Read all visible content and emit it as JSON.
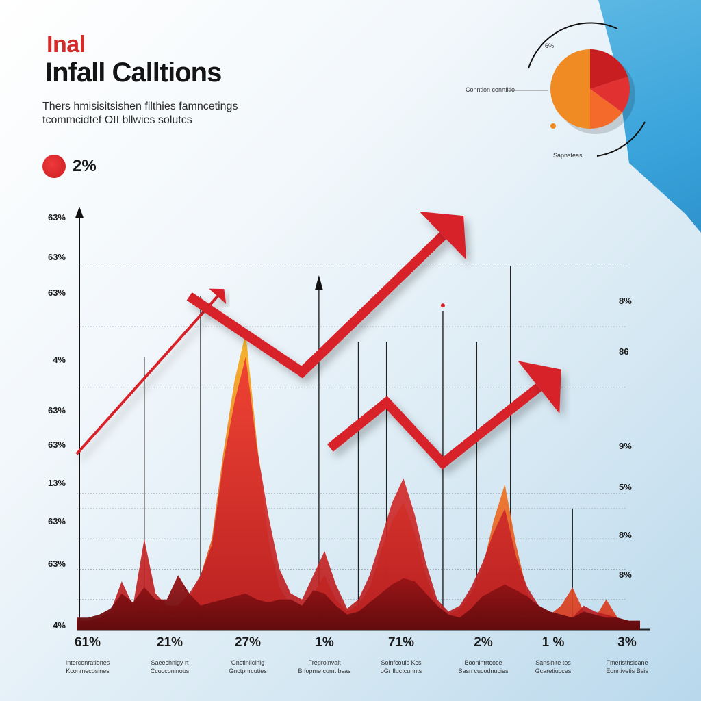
{
  "header": {
    "kicker": "Inal",
    "title": "Infall Calltions",
    "subtitle_line1": "Thers hmisisitsishen filthies famncetings",
    "subtitle_line2": "tcommcidtef OII bllwies solutcs"
  },
  "legend": {
    "label": "2%",
    "color": "#d42b2b"
  },
  "pie": {
    "top_label": "6%",
    "left_label": "Conntion conrtlitio",
    "bottom_label": "Sapnsteas",
    "slices": [
      {
        "value": 50,
        "color": "#f08a22"
      },
      {
        "value": 20,
        "color": "#c81e22"
      },
      {
        "value": 15,
        "color": "#e23131"
      },
      {
        "value": 15,
        "color": "#f46a2a"
      }
    ]
  },
  "colors": {
    "red": "#d42b2b",
    "dark_red": "#7a0f12",
    "orange": "#f3a21c",
    "blue": "#3aa4db"
  },
  "chart_data": {
    "type": "area",
    "y_left_labels": [
      "63%",
      "63%",
      "63%",
      "4%",
      "63%",
      "63%",
      "13%",
      "63%",
      "63%",
      "4%"
    ],
    "y_right_labels": [
      "8%",
      "86",
      "9%",
      "5%",
      "8%",
      "8%"
    ],
    "categories": [
      "61%",
      "21%",
      "27%",
      "1%",
      "71%",
      "2%",
      "1 %",
      "3%"
    ],
    "category_sublabels": [
      [
        "Interconrationes",
        "Kconmecosines"
      ],
      [
        "Saeechnigy rt",
        "Ccocconinobs"
      ],
      [
        "Gnctinlicinig",
        "Gnctpnrcuties"
      ],
      [
        "Freproinvalt",
        "B fopme comt bsas"
      ],
      [
        "Solnfcouis Kcs",
        "oGr fluctcunnts"
      ],
      [
        "Boonintrtcoce",
        "Sasn cucodnucies"
      ],
      [
        "Sansinite tos",
        "Gcaretiucces"
      ],
      [
        "Fmeristhsicane",
        "Eonrtivetis Bsis"
      ]
    ],
    "series": [
      {
        "type": "area",
        "color": "#7a0f12",
        "x": [
          0,
          2,
          4,
          6,
          8,
          10,
          12,
          14,
          16,
          18,
          20,
          22,
          24,
          26,
          28,
          30,
          32,
          34,
          36,
          38,
          40,
          42,
          44,
          46,
          48,
          50,
          52,
          54,
          56,
          58,
          60,
          62,
          64,
          66,
          68,
          70,
          72,
          74,
          76,
          78,
          80,
          82,
          84,
          86,
          88,
          90,
          92,
          94,
          96,
          98,
          100
        ],
        "y": [
          4,
          4,
          5,
          7,
          12,
          9,
          14,
          10,
          10,
          18,
          12,
          8,
          9,
          10,
          11,
          12,
          10,
          9,
          10,
          10,
          8,
          13,
          12,
          8,
          5,
          6,
          9,
          12,
          15,
          17,
          16,
          12,
          8,
          5,
          4,
          7,
          11,
          13,
          15,
          13,
          11,
          8,
          6,
          5,
          4,
          6,
          5,
          4,
          4,
          3,
          3
        ]
      },
      {
        "type": "area",
        "color": "#e23131",
        "x": [
          0,
          2,
          4,
          6,
          8,
          10,
          12,
          14,
          16,
          18,
          20,
          22,
          24,
          26,
          28,
          30,
          32,
          34,
          36,
          38,
          40,
          42,
          44,
          46,
          48,
          50,
          52,
          54,
          56,
          58,
          60,
          62,
          64,
          66,
          68,
          70,
          72,
          74,
          76,
          78,
          80,
          82,
          84,
          86,
          88,
          90,
          92,
          94,
          96,
          98,
          100
        ],
        "y": [
          3,
          3,
          4,
          6,
          16,
          8,
          30,
          12,
          8,
          8,
          12,
          18,
          28,
          55,
          75,
          90,
          60,
          38,
          20,
          12,
          10,
          18,
          26,
          15,
          7,
          10,
          18,
          30,
          42,
          50,
          38,
          22,
          10,
          6,
          8,
          14,
          22,
          32,
          40,
          24,
          14,
          8,
          6,
          5,
          4,
          8,
          6,
          5,
          4,
          3,
          3
        ]
      },
      {
        "type": "area",
        "color": "#f3a21c",
        "x": [
          0,
          2,
          4,
          6,
          8,
          10,
          12,
          14,
          16,
          18,
          20,
          22,
          24,
          26,
          28,
          30,
          32,
          34,
          36,
          38,
          40,
          42,
          44,
          46,
          48,
          50,
          52,
          54,
          56,
          58,
          60,
          62,
          64,
          66,
          68,
          70,
          72,
          74,
          76,
          78,
          80,
          82,
          84,
          86,
          88,
          90,
          92,
          94,
          96,
          98,
          100
        ],
        "y": [
          2,
          2,
          3,
          4,
          6,
          5,
          8,
          6,
          6,
          8,
          10,
          18,
          30,
          58,
          82,
          98,
          62,
          30,
          14,
          8,
          8,
          12,
          18,
          10,
          6,
          8,
          14,
          26,
          36,
          42,
          32,
          18,
          8,
          5,
          7,
          12,
          20,
          36,
          48,
          28,
          12,
          6,
          5,
          8,
          14,
          6,
          4,
          10,
          4,
          2,
          2
        ]
      }
    ],
    "trend_lines": [
      {
        "name": "",
        "x": [
          0,
          25
        ],
        "y": [
          58,
          110
        ]
      },
      {
        "name": "",
        "x": [
          20,
          40,
          65
        ],
        "y": [
          110,
          85,
          130
        ]
      },
      {
        "name": "",
        "x": [
          45,
          55,
          65,
          82
        ],
        "y": [
          60,
          75,
          55,
          80
        ]
      }
    ],
    "xlim": [
      0,
      100
    ],
    "ylim": [
      0,
      140
    ],
    "grid": true
  }
}
